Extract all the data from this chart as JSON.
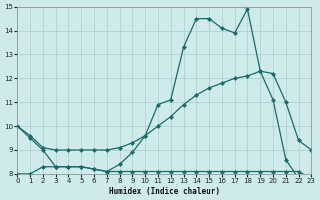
{
  "xlabel": "Humidex (Indice chaleur)",
  "xlim": [
    0,
    23
  ],
  "ylim": [
    8,
    15
  ],
  "yticks": [
    8,
    9,
    10,
    11,
    12,
    13,
    14,
    15
  ],
  "xticks": [
    0,
    1,
    2,
    3,
    4,
    5,
    6,
    7,
    8,
    9,
    10,
    11,
    12,
    13,
    14,
    15,
    16,
    17,
    18,
    19,
    20,
    21,
    22,
    23
  ],
  "bg_color": "#ceeaea",
  "grid_color": "#aacece",
  "line_color": "#1a6b6b",
  "line1_x": [
    0,
    1,
    2,
    3,
    4,
    5,
    6,
    7,
    8,
    9,
    10,
    11,
    12,
    13,
    14,
    15,
    16,
    17,
    18,
    19,
    20,
    21,
    22,
    23
  ],
  "line1_y": [
    10.0,
    9.5,
    9.0,
    8.3,
    8.3,
    8.3,
    8.2,
    8.1,
    8.4,
    8.9,
    9.6,
    10.9,
    11.1,
    13.3,
    14.5,
    14.5,
    14.1,
    13.9,
    14.9,
    12.3,
    11.1,
    8.6,
    7.8,
    7.8
  ],
  "line2_x": [
    0,
    1,
    2,
    3,
    4,
    5,
    6,
    7,
    8,
    9,
    10,
    11,
    12,
    13,
    14,
    15,
    16,
    17,
    18,
    19,
    20,
    21,
    22,
    23
  ],
  "line2_y": [
    10.0,
    9.6,
    9.1,
    9.0,
    9.0,
    9.0,
    9.0,
    9.0,
    9.1,
    9.3,
    9.6,
    10.0,
    10.4,
    10.9,
    11.3,
    11.6,
    11.8,
    12.0,
    12.1,
    12.3,
    12.2,
    11.0,
    9.4,
    9.0
  ],
  "line3_x": [
    0,
    1,
    2,
    3,
    4,
    5,
    6,
    7,
    8,
    9,
    10,
    11,
    12,
    13,
    14,
    15,
    16,
    17,
    18,
    19,
    20,
    21,
    22,
    23
  ],
  "line3_y": [
    8.0,
    8.0,
    8.3,
    8.3,
    8.3,
    8.3,
    8.2,
    8.1,
    8.1,
    8.1,
    8.1,
    8.1,
    8.1,
    8.1,
    8.1,
    8.1,
    8.1,
    8.1,
    8.1,
    8.1,
    8.1,
    8.1,
    8.1,
    7.8
  ]
}
